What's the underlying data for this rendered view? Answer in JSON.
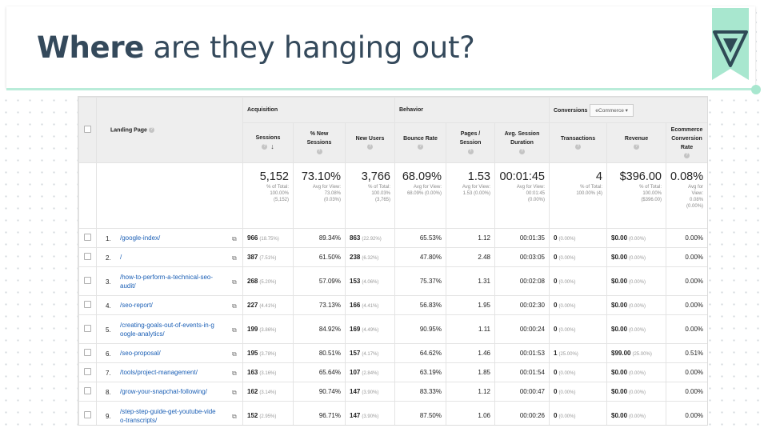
{
  "slide": {
    "title_bold": "Where",
    "title_rest": " are they hanging out?",
    "accent_color": "#a8e7cf",
    "title_color": "#34495b"
  },
  "table": {
    "landing_page_label": "Landing Page",
    "groups": {
      "acquisition": "Acquisition",
      "behavior": "Behavior",
      "conversions": "Conversions",
      "conversions_select": "eCommerce"
    },
    "columns": [
      {
        "key": "sessions",
        "label": "Sessions"
      },
      {
        "key": "new_sessions",
        "label": "% New Sessions"
      },
      {
        "key": "new_users",
        "label": "New Users"
      },
      {
        "key": "bounce",
        "label": "Bounce Rate"
      },
      {
        "key": "pages",
        "label": "Pages / Session"
      },
      {
        "key": "duration",
        "label": "Avg. Session Duration"
      },
      {
        "key": "transactions",
        "label": "Transactions"
      },
      {
        "key": "revenue",
        "label": "Revenue"
      },
      {
        "key": "ecr",
        "label": "Ecommerce Conversion Rate"
      }
    ],
    "totals": [
      {
        "big": "5,152",
        "sub": [
          "% of Total:",
          "100.00%",
          "(5,152)"
        ]
      },
      {
        "big": "73.10%",
        "sub": [
          "Avg for View:",
          "73.08%",
          "(0.03%)"
        ]
      },
      {
        "big": "3,766",
        "sub": [
          "% of Total:",
          "100.03%",
          "(3,765)"
        ]
      },
      {
        "big": "68.09%",
        "sub": [
          "Avg for View:",
          "68.09% (0.00%)"
        ]
      },
      {
        "big": "1.53",
        "sub": [
          "Avg for View:",
          "1.53 (0.00%)"
        ]
      },
      {
        "big": "00:01:45",
        "sub": [
          "Avg for View:",
          "00:01:45",
          "(0.00%)"
        ]
      },
      {
        "big": "4",
        "sub": [
          "% of Total:",
          "100.00% (4)"
        ]
      },
      {
        "big": "$396.00",
        "sub": [
          "% of Total:",
          "100.00%",
          "($396.00)"
        ]
      },
      {
        "big": "0.08%",
        "sub": [
          "Avg for",
          "View:",
          "0.08%",
          "(0.00%)"
        ]
      }
    ],
    "rows": [
      {
        "idx": "1.",
        "page": [
          "/google-index/"
        ],
        "sessions": "966",
        "sessions_pct": "(18.75%)",
        "new_sessions": "89.34%",
        "new_users": "863",
        "new_users_pct": "(22.92%)",
        "bounce": "65.53%",
        "pages": "1.12",
        "duration": "00:01:35",
        "transactions": "0",
        "transactions_pct": "(0.00%)",
        "revenue": "$0.00",
        "revenue_pct": "(0.00%)",
        "ecr": "0.00%"
      },
      {
        "idx": "2.",
        "page": [
          "/"
        ],
        "sessions": "387",
        "sessions_pct": "(7.51%)",
        "new_sessions": "61.50%",
        "new_users": "238",
        "new_users_pct": "(6.32%)",
        "bounce": "47.80%",
        "pages": "2.48",
        "duration": "00:03:05",
        "transactions": "0",
        "transactions_pct": "(0.00%)",
        "revenue": "$0.00",
        "revenue_pct": "(0.00%)",
        "ecr": "0.00%"
      },
      {
        "idx": "3.",
        "page": [
          "/how-to-perform-a-technical-seo-",
          "audit/"
        ],
        "sessions": "268",
        "sessions_pct": "(5.20%)",
        "new_sessions": "57.09%",
        "new_users": "153",
        "new_users_pct": "(4.06%)",
        "bounce": "75.37%",
        "pages": "1.31",
        "duration": "00:02:08",
        "transactions": "0",
        "transactions_pct": "(0.00%)",
        "revenue": "$0.00",
        "revenue_pct": "(0.00%)",
        "ecr": "0.00%"
      },
      {
        "idx": "4.",
        "page": [
          "/seo-report/"
        ],
        "sessions": "227",
        "sessions_pct": "(4.41%)",
        "new_sessions": "73.13%",
        "new_users": "166",
        "new_users_pct": "(4.41%)",
        "bounce": "56.83%",
        "pages": "1.95",
        "duration": "00:02:30",
        "transactions": "0",
        "transactions_pct": "(0.00%)",
        "revenue": "$0.00",
        "revenue_pct": "(0.00%)",
        "ecr": "0.00%"
      },
      {
        "idx": "5.",
        "page": [
          "/creating-goals-out-of-events-in-g",
          "oogle-analytics/"
        ],
        "sessions": "199",
        "sessions_pct": "(3.86%)",
        "new_sessions": "84.92%",
        "new_users": "169",
        "new_users_pct": "(4.49%)",
        "bounce": "90.95%",
        "pages": "1.11",
        "duration": "00:00:24",
        "transactions": "0",
        "transactions_pct": "(0.00%)",
        "revenue": "$0.00",
        "revenue_pct": "(0.00%)",
        "ecr": "0.00%"
      },
      {
        "idx": "6.",
        "page": [
          "/seo-proposal/"
        ],
        "sessions": "195",
        "sessions_pct": "(3.78%)",
        "new_sessions": "80.51%",
        "new_users": "157",
        "new_users_pct": "(4.17%)",
        "bounce": "64.62%",
        "pages": "1.46",
        "duration": "00:01:53",
        "transactions": "1",
        "transactions_pct": "(25.00%)",
        "revenue": "$99.00",
        "revenue_pct": "(25.00%)",
        "ecr": "0.51%"
      },
      {
        "idx": "7.",
        "page": [
          "/tools/project-management/"
        ],
        "sessions": "163",
        "sessions_pct": "(3.16%)",
        "new_sessions": "65.64%",
        "new_users": "107",
        "new_users_pct": "(2.84%)",
        "bounce": "63.19%",
        "pages": "1.85",
        "duration": "00:01:54",
        "transactions": "0",
        "transactions_pct": "(0.00%)",
        "revenue": "$0.00",
        "revenue_pct": "(0.00%)",
        "ecr": "0.00%"
      },
      {
        "idx": "8.",
        "page": [
          "/grow-your-snapchat-following/"
        ],
        "sessions": "162",
        "sessions_pct": "(3.14%)",
        "new_sessions": "90.74%",
        "new_users": "147",
        "new_users_pct": "(3.90%)",
        "bounce": "83.33%",
        "pages": "1.12",
        "duration": "00:00:47",
        "transactions": "0",
        "transactions_pct": "(0.00%)",
        "revenue": "$0.00",
        "revenue_pct": "(0.00%)",
        "ecr": "0.00%"
      },
      {
        "idx": "9.",
        "page": [
          "/step-step-guide-get-youtube-vide",
          "o-transcripts/"
        ],
        "sessions": "152",
        "sessions_pct": "(2.95%)",
        "new_sessions": "96.71%",
        "new_users": "147",
        "new_users_pct": "(3.90%)",
        "bounce": "87.50%",
        "pages": "1.06",
        "duration": "00:00:26",
        "transactions": "0",
        "transactions_pct": "(0.00%)",
        "revenue": "$0.00",
        "revenue_pct": "(0.00%)",
        "ecr": "0.00%"
      }
    ]
  }
}
